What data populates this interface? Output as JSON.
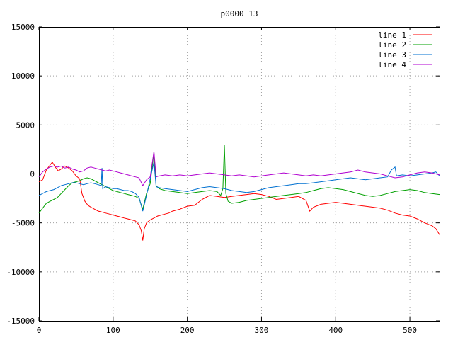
{
  "chart_data": {
    "type": "line",
    "title": "p0000_13",
    "xlabel": "",
    "ylabel": "",
    "xlim": [
      0,
      540
    ],
    "ylim": [
      -15000,
      15000
    ],
    "x_ticks": [
      0,
      100,
      200,
      300,
      400,
      500
    ],
    "y_ticks": [
      -15000,
      -10000,
      -5000,
      0,
      5000,
      10000,
      15000
    ],
    "grid": true,
    "legend_position": "top-right",
    "series": [
      {
        "name": "line 1",
        "color": "#ff0000",
        "points": [
          [
            0,
            -800
          ],
          [
            5,
            -600
          ],
          [
            10,
            400
          ],
          [
            15,
            900
          ],
          [
            18,
            1200
          ],
          [
            22,
            700
          ],
          [
            26,
            300
          ],
          [
            30,
            500
          ],
          [
            35,
            800
          ],
          [
            40,
            600
          ],
          [
            45,
            300
          ],
          [
            50,
            -200
          ],
          [
            55,
            -500
          ],
          [
            58,
            -2000
          ],
          [
            62,
            -2800
          ],
          [
            66,
            -3200
          ],
          [
            70,
            -3400
          ],
          [
            75,
            -3600
          ],
          [
            80,
            -3800
          ],
          [
            85,
            -3900
          ],
          [
            90,
            -4000
          ],
          [
            95,
            -4100
          ],
          [
            100,
            -4200
          ],
          [
            105,
            -4300
          ],
          [
            110,
            -4400
          ],
          [
            115,
            -4500
          ],
          [
            120,
            -4600
          ],
          [
            125,
            -4700
          ],
          [
            130,
            -4800
          ],
          [
            135,
            -5200
          ],
          [
            138,
            -5800
          ],
          [
            140,
            -6800
          ],
          [
            142,
            -5600
          ],
          [
            145,
            -5000
          ],
          [
            150,
            -4700
          ],
          [
            155,
            -4500
          ],
          [
            160,
            -4300
          ],
          [
            165,
            -4200
          ],
          [
            170,
            -4100
          ],
          [
            175,
            -4000
          ],
          [
            180,
            -3800
          ],
          [
            190,
            -3600
          ],
          [
            200,
            -3300
          ],
          [
            210,
            -3200
          ],
          [
            220,
            -2600
          ],
          [
            230,
            -2200
          ],
          [
            240,
            -2300
          ],
          [
            250,
            -2400
          ],
          [
            260,
            -2300
          ],
          [
            270,
            -2200
          ],
          [
            280,
            -2100
          ],
          [
            290,
            -2000
          ],
          [
            300,
            -2100
          ],
          [
            310,
            -2300
          ],
          [
            320,
            -2600
          ],
          [
            330,
            -2500
          ],
          [
            340,
            -2400
          ],
          [
            350,
            -2300
          ],
          [
            360,
            -2700
          ],
          [
            365,
            -3800
          ],
          [
            370,
            -3400
          ],
          [
            380,
            -3100
          ],
          [
            390,
            -3000
          ],
          [
            400,
            -2900
          ],
          [
            410,
            -3000
          ],
          [
            420,
            -3100
          ],
          [
            430,
            -3200
          ],
          [
            440,
            -3300
          ],
          [
            450,
            -3400
          ],
          [
            460,
            -3500
          ],
          [
            470,
            -3700
          ],
          [
            480,
            -4000
          ],
          [
            490,
            -4200
          ],
          [
            500,
            -4300
          ],
          [
            510,
            -4600
          ],
          [
            520,
            -5000
          ],
          [
            530,
            -5300
          ],
          [
            535,
            -5600
          ],
          [
            540,
            -6200
          ]
        ]
      },
      {
        "name": "line 2",
        "color": "#00a000",
        "points": [
          [
            0,
            -4000
          ],
          [
            5,
            -3500
          ],
          [
            10,
            -3000
          ],
          [
            15,
            -2800
          ],
          [
            20,
            -2600
          ],
          [
            25,
            -2400
          ],
          [
            30,
            -2000
          ],
          [
            35,
            -1600
          ],
          [
            40,
            -1200
          ],
          [
            45,
            -900
          ],
          [
            50,
            -800
          ],
          [
            55,
            -700
          ],
          [
            60,
            -500
          ],
          [
            65,
            -400
          ],
          [
            70,
            -500
          ],
          [
            75,
            -700
          ],
          [
            80,
            -900
          ],
          [
            85,
            -1100
          ],
          [
            90,
            -1300
          ],
          [
            95,
            -1500
          ],
          [
            100,
            -1700
          ],
          [
            105,
            -1800
          ],
          [
            110,
            -1900
          ],
          [
            115,
            -2000
          ],
          [
            120,
            -2100
          ],
          [
            125,
            -2200
          ],
          [
            130,
            -2300
          ],
          [
            135,
            -2500
          ],
          [
            140,
            -3600
          ],
          [
            145,
            -2000
          ],
          [
            150,
            -1000
          ],
          [
            155,
            2200
          ],
          [
            158,
            -1200
          ],
          [
            162,
            -1500
          ],
          [
            170,
            -1700
          ],
          [
            180,
            -1800
          ],
          [
            190,
            -1900
          ],
          [
            200,
            -2000
          ],
          [
            210,
            -1900
          ],
          [
            220,
            -1800
          ],
          [
            230,
            -1700
          ],
          [
            240,
            -1800
          ],
          [
            245,
            -2200
          ],
          [
            248,
            -1500
          ],
          [
            250,
            3000
          ],
          [
            252,
            -2000
          ],
          [
            255,
            -2800
          ],
          [
            260,
            -3000
          ],
          [
            270,
            -2900
          ],
          [
            280,
            -2700
          ],
          [
            290,
            -2600
          ],
          [
            300,
            -2500
          ],
          [
            310,
            -2400
          ],
          [
            320,
            -2300
          ],
          [
            330,
            -2200
          ],
          [
            340,
            -2100
          ],
          [
            350,
            -2000
          ],
          [
            360,
            -1900
          ],
          [
            370,
            -1700
          ],
          [
            380,
            -1500
          ],
          [
            390,
            -1400
          ],
          [
            400,
            -1500
          ],
          [
            410,
            -1600
          ],
          [
            420,
            -1800
          ],
          [
            430,
            -2000
          ],
          [
            440,
            -2200
          ],
          [
            450,
            -2300
          ],
          [
            460,
            -2200
          ],
          [
            470,
            -2000
          ],
          [
            480,
            -1800
          ],
          [
            490,
            -1700
          ],
          [
            500,
            -1600
          ],
          [
            510,
            -1700
          ],
          [
            520,
            -1900
          ],
          [
            530,
            -2000
          ],
          [
            540,
            -2100
          ]
        ]
      },
      {
        "name": "line 3",
        "color": "#0070d0",
        "points": [
          [
            0,
            -2200
          ],
          [
            5,
            -2000
          ],
          [
            10,
            -1800
          ],
          [
            15,
            -1700
          ],
          [
            20,
            -1600
          ],
          [
            25,
            -1400
          ],
          [
            30,
            -1200
          ],
          [
            35,
            -1100
          ],
          [
            40,
            -1000
          ],
          [
            45,
            -900
          ],
          [
            50,
            -900
          ],
          [
            55,
            -1000
          ],
          [
            60,
            -1100
          ],
          [
            65,
            -1000
          ],
          [
            70,
            -900
          ],
          [
            75,
            -1000
          ],
          [
            80,
            -1100
          ],
          [
            84,
            -1200
          ],
          [
            85,
            600
          ],
          [
            86,
            -1500
          ],
          [
            90,
            -1300
          ],
          [
            95,
            -1400
          ],
          [
            100,
            -1500
          ],
          [
            105,
            -1500
          ],
          [
            110,
            -1600
          ],
          [
            115,
            -1700
          ],
          [
            120,
            -1700
          ],
          [
            125,
            -1800
          ],
          [
            130,
            -2000
          ],
          [
            135,
            -2400
          ],
          [
            140,
            -3800
          ],
          [
            145,
            -2200
          ],
          [
            150,
            -500
          ],
          [
            155,
            1200
          ],
          [
            158,
            -1300
          ],
          [
            162,
            -1400
          ],
          [
            170,
            -1500
          ],
          [
            180,
            -1600
          ],
          [
            190,
            -1700
          ],
          [
            200,
            -1800
          ],
          [
            210,
            -1600
          ],
          [
            220,
            -1400
          ],
          [
            230,
            -1300
          ],
          [
            240,
            -1400
          ],
          [
            250,
            -1500
          ],
          [
            260,
            -1700
          ],
          [
            270,
            -1800
          ],
          [
            280,
            -1900
          ],
          [
            290,
            -1800
          ],
          [
            300,
            -1600
          ],
          [
            310,
            -1400
          ],
          [
            320,
            -1300
          ],
          [
            330,
            -1200
          ],
          [
            340,
            -1100
          ],
          [
            350,
            -1000
          ],
          [
            360,
            -1000
          ],
          [
            370,
            -900
          ],
          [
            380,
            -800
          ],
          [
            390,
            -700
          ],
          [
            400,
            -600
          ],
          [
            410,
            -500
          ],
          [
            420,
            -400
          ],
          [
            430,
            -500
          ],
          [
            440,
            -600
          ],
          [
            450,
            -500
          ],
          [
            460,
            -400
          ],
          [
            470,
            -300
          ],
          [
            475,
            400
          ],
          [
            480,
            700
          ],
          [
            482,
            -200
          ],
          [
            490,
            -100
          ],
          [
            500,
            -200
          ],
          [
            510,
            -100
          ],
          [
            520,
            0
          ],
          [
            530,
            100
          ],
          [
            535,
            200
          ],
          [
            540,
            -200
          ]
        ]
      },
      {
        "name": "line 4",
        "color": "#b000d0",
        "points": [
          [
            0,
            -300
          ],
          [
            5,
            200
          ],
          [
            10,
            500
          ],
          [
            15,
            700
          ],
          [
            20,
            800
          ],
          [
            25,
            700
          ],
          [
            30,
            800
          ],
          [
            35,
            600
          ],
          [
            40,
            700
          ],
          [
            45,
            500
          ],
          [
            50,
            400
          ],
          [
            55,
            200
          ],
          [
            60,
            300
          ],
          [
            65,
            600
          ],
          [
            70,
            700
          ],
          [
            75,
            600
          ],
          [
            80,
            500
          ],
          [
            85,
            400
          ],
          [
            90,
            300
          ],
          [
            95,
            400
          ],
          [
            100,
            300
          ],
          [
            105,
            200
          ],
          [
            110,
            100
          ],
          [
            115,
            0
          ],
          [
            120,
            -100
          ],
          [
            125,
            -200
          ],
          [
            130,
            -300
          ],
          [
            135,
            -400
          ],
          [
            140,
            -1200
          ],
          [
            145,
            -600
          ],
          [
            150,
            -300
          ],
          [
            155,
            2300
          ],
          [
            158,
            -300
          ],
          [
            162,
            -200
          ],
          [
            170,
            -100
          ],
          [
            180,
            -200
          ],
          [
            190,
            -100
          ],
          [
            200,
            -200
          ],
          [
            210,
            -100
          ],
          [
            220,
            0
          ],
          [
            230,
            100
          ],
          [
            240,
            0
          ],
          [
            250,
            -100
          ],
          [
            260,
            -200
          ],
          [
            270,
            -100
          ],
          [
            280,
            -200
          ],
          [
            290,
            -300
          ],
          [
            300,
            -200
          ],
          [
            310,
            -100
          ],
          [
            320,
            0
          ],
          [
            330,
            100
          ],
          [
            340,
            0
          ],
          [
            350,
            -100
          ],
          [
            360,
            -200
          ],
          [
            370,
            -100
          ],
          [
            380,
            -200
          ],
          [
            390,
            -100
          ],
          [
            400,
            0
          ],
          [
            410,
            100
          ],
          [
            420,
            200
          ],
          [
            430,
            400
          ],
          [
            440,
            200
          ],
          [
            450,
            100
          ],
          [
            460,
            0
          ],
          [
            470,
            -200
          ],
          [
            480,
            -400
          ],
          [
            490,
            -300
          ],
          [
            500,
            -100
          ],
          [
            510,
            100
          ],
          [
            520,
            200
          ],
          [
            530,
            100
          ],
          [
            535,
            0
          ],
          [
            540,
            -100
          ]
        ]
      }
    ]
  }
}
